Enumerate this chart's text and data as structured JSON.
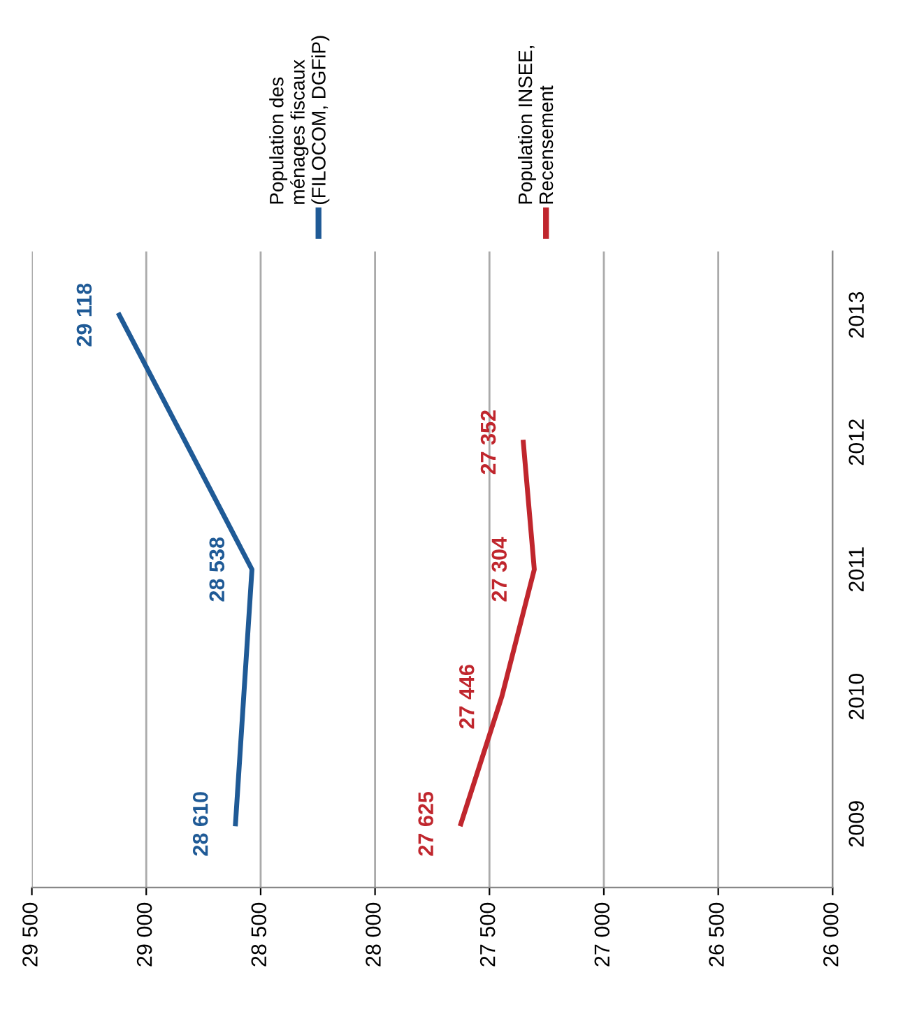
{
  "chart_data": {
    "type": "line",
    "orientation": "horizontal",
    "xlim": [
      29500,
      26000
    ],
    "xticks": [
      {
        "value": 29500,
        "label": "29 500"
      },
      {
        "value": 29000,
        "label": "29 000"
      },
      {
        "value": 28500,
        "label": "28 500"
      },
      {
        "value": 28000,
        "label": "28 000"
      },
      {
        "value": 27500,
        "label": "27 500"
      },
      {
        "value": 27000,
        "label": "27 000"
      },
      {
        "value": 26500,
        "label": "26 500"
      },
      {
        "value": 26000,
        "label": "26 000"
      }
    ],
    "ylim": [
      2008.5,
      2013.5
    ],
    "yticks": [
      2009,
      2010,
      2011,
      2012,
      2013
    ],
    "series": [
      {
        "name": "Population des ménages fiscaux (FILOCOM, DGFiP)",
        "color": "#1f5a96",
        "x": [
          2009,
          2011,
          2013
        ],
        "values": [
          28610,
          28538,
          29118
        ],
        "value_labels": [
          "28 610",
          "28 538",
          "29 118"
        ]
      },
      {
        "name": "Population INSEE, Recensement",
        "color": "#c0262d",
        "x": [
          2009,
          2010,
          2011,
          2012
        ],
        "values": [
          27625,
          27446,
          27304,
          27352
        ],
        "value_labels": [
          "27 625",
          "27 446",
          "27 304",
          "27 352"
        ]
      }
    ],
    "grid": "x",
    "legend": "top",
    "marker": "none",
    "line_style": "solid"
  }
}
